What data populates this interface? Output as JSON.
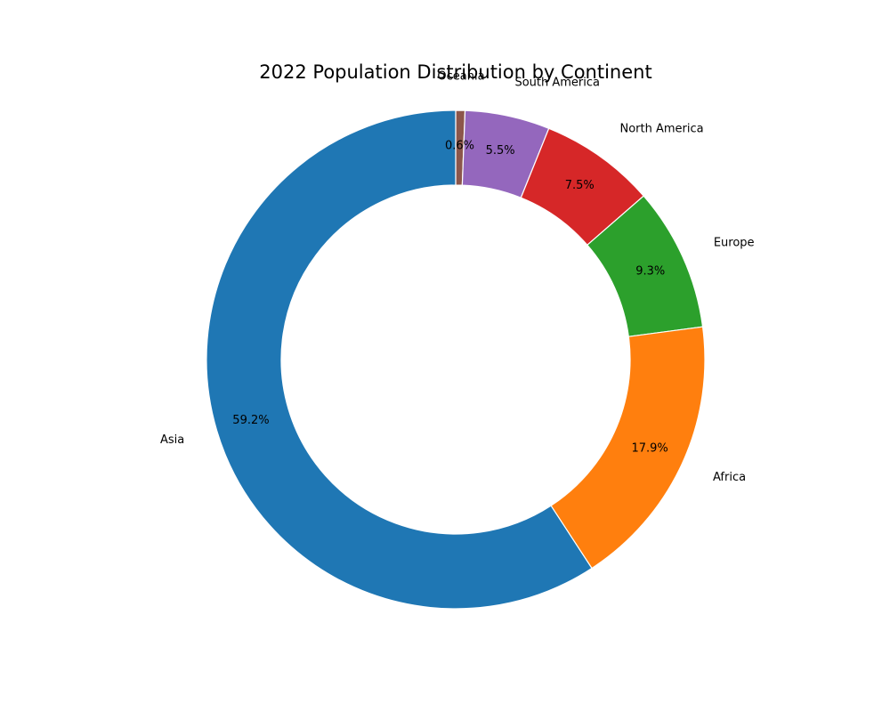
{
  "chart_data": {
    "type": "pie",
    "title": "2022 Population Distribution by Continent",
    "donut": true,
    "start_angle_deg": 90,
    "direction": "clockwise",
    "slices": [
      {
        "label": "Oceania",
        "percent": 0.6,
        "percent_label": "0.6%",
        "color": "#8c564b"
      },
      {
        "label": "South America",
        "percent": 5.5,
        "percent_label": "5.5%",
        "color": "#9467bd"
      },
      {
        "label": "North America",
        "percent": 7.5,
        "percent_label": "7.5%",
        "color": "#d62728"
      },
      {
        "label": "Europe",
        "percent": 9.3,
        "percent_label": "9.3%",
        "color": "#2ca02c"
      },
      {
        "label": "Africa",
        "percent": 17.9,
        "percent_label": "17.9%",
        "color": "#ff7f0e"
      },
      {
        "label": "Asia",
        "percent": 59.2,
        "percent_label": "59.2%",
        "color": "#1f77b4"
      }
    ]
  }
}
